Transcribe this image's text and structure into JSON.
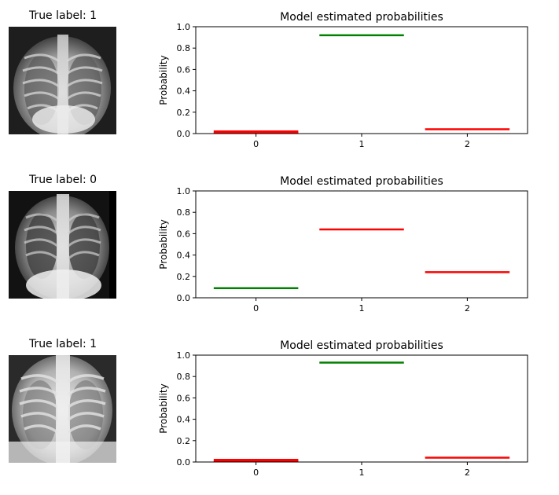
{
  "panels": [
    {
      "image_title": "True label: 1"
    },
    {
      "image_title": "True label: 0"
    },
    {
      "image_title": "True label: 1"
    }
  ],
  "colors": {
    "correct": "#008000",
    "incorrect": "#ff0000"
  },
  "chart_data": [
    {
      "type": "bar",
      "title": "Model estimated probabilities",
      "xlabel": "",
      "ylabel": "Probability",
      "categories": [
        "0",
        "1",
        "2"
      ],
      "values": [
        0.01,
        0.92,
        0.04
      ],
      "highlight_index": 1,
      "ylim": [
        0,
        1
      ],
      "yticks": [
        "0.0",
        "0.2",
        "0.4",
        "0.6",
        "0.8",
        "1.0"
      ],
      "grid": false
    },
    {
      "type": "bar",
      "title": "Model estimated probabilities",
      "xlabel": "",
      "ylabel": "Probability",
      "categories": [
        "0",
        "1",
        "2"
      ],
      "values": [
        0.09,
        0.64,
        0.24
      ],
      "highlight_index": 0,
      "ylim": [
        0,
        1
      ],
      "yticks": [
        "0.0",
        "0.2",
        "0.4",
        "0.6",
        "0.8",
        "1.0"
      ],
      "grid": false
    },
    {
      "type": "bar",
      "title": "Model estimated probabilities",
      "xlabel": "",
      "ylabel": "Probability",
      "categories": [
        "0",
        "1",
        "2"
      ],
      "values": [
        0.01,
        0.93,
        0.04
      ],
      "highlight_index": 1,
      "ylim": [
        0,
        1
      ],
      "yticks": [
        "0.0",
        "0.2",
        "0.4",
        "0.6",
        "0.8",
        "1.0"
      ],
      "grid": false
    }
  ]
}
